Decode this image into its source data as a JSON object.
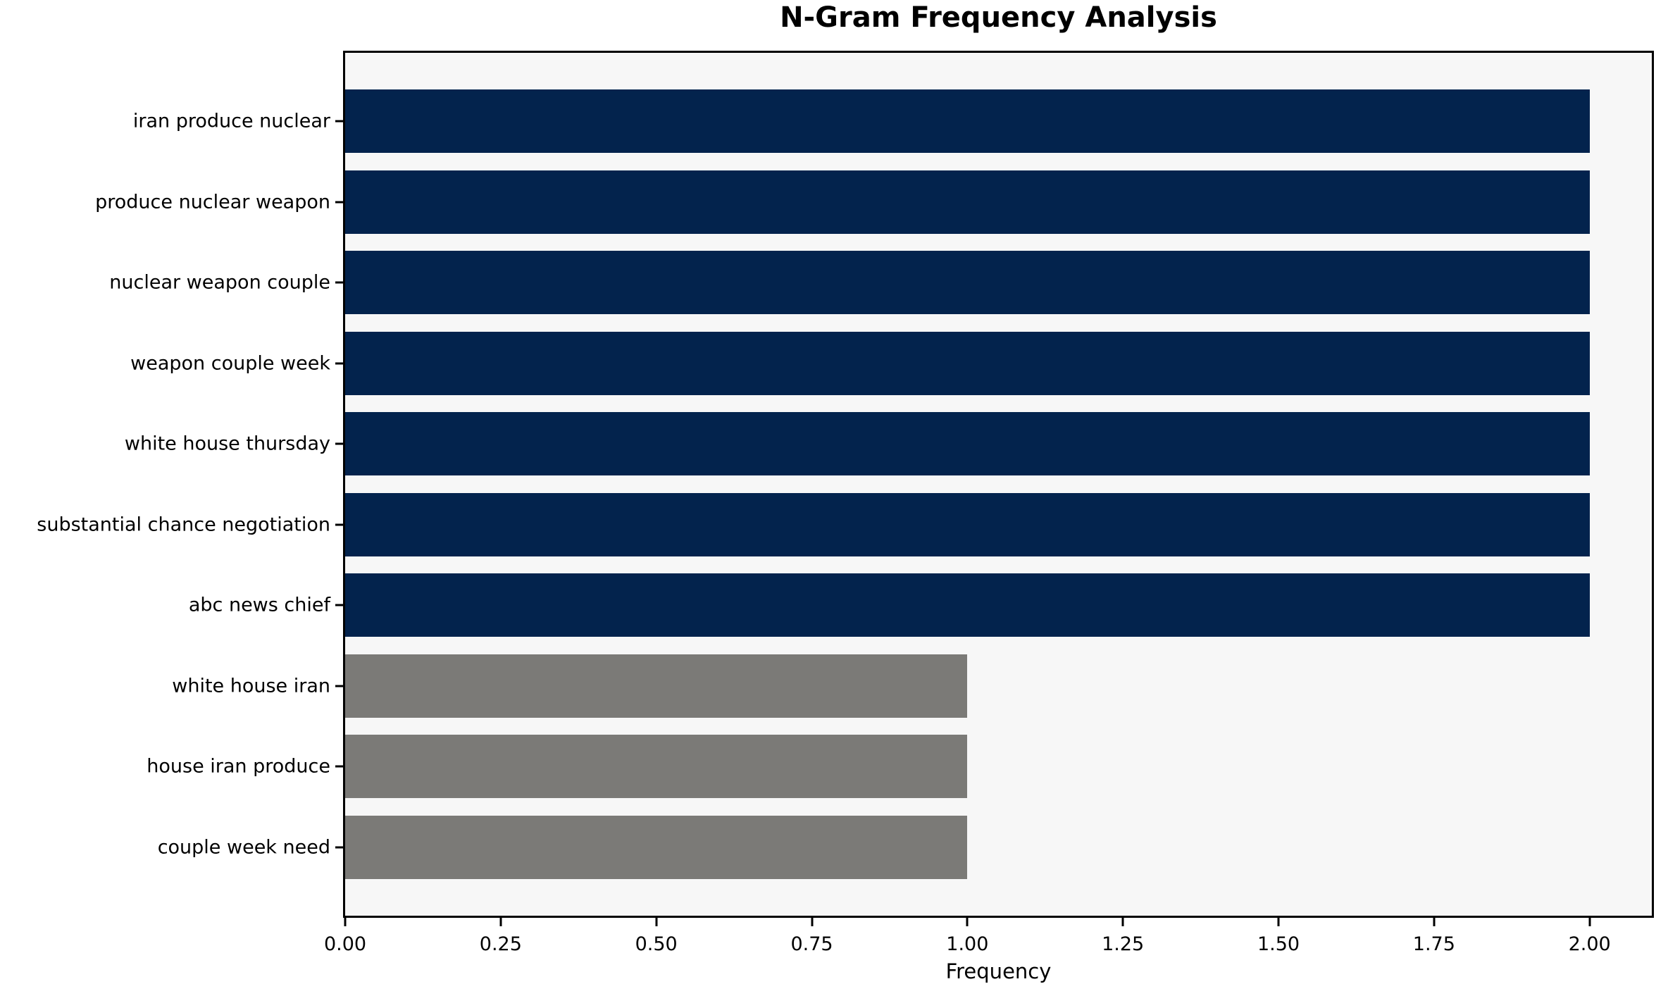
{
  "chart_data": {
    "type": "bar",
    "orientation": "horizontal",
    "title": "N-Gram Frequency Analysis",
    "xlabel": "Frequency",
    "ylabel": "",
    "categories": [
      "iran produce nuclear",
      "produce nuclear weapon",
      "nuclear weapon couple",
      "weapon couple week",
      "white house thursday",
      "substantial chance negotiation",
      "abc news chief",
      "white house iran",
      "house iran produce",
      "couple week need"
    ],
    "values": [
      2,
      2,
      2,
      2,
      2,
      2,
      2,
      1,
      1,
      1
    ],
    "bar_colors": [
      "#03234d",
      "#03234d",
      "#03234d",
      "#03234d",
      "#03234d",
      "#03234d",
      "#03234d",
      "#7b7a77",
      "#7b7a77",
      "#7b7a77"
    ],
    "xlim": [
      0,
      2.1
    ],
    "x_ticks": [
      "0.00",
      "0.25",
      "0.50",
      "0.75",
      "1.00",
      "1.25",
      "1.50",
      "1.75",
      "2.00"
    ],
    "x_tick_values": [
      0,
      0.25,
      0.5,
      0.75,
      1.0,
      1.25,
      1.5,
      1.75,
      2.0
    ],
    "grid": false,
    "legend_position": "none",
    "plot_background": "#f7f7f7",
    "figure_background": "#ffffff",
    "axis_color": "#000000"
  }
}
